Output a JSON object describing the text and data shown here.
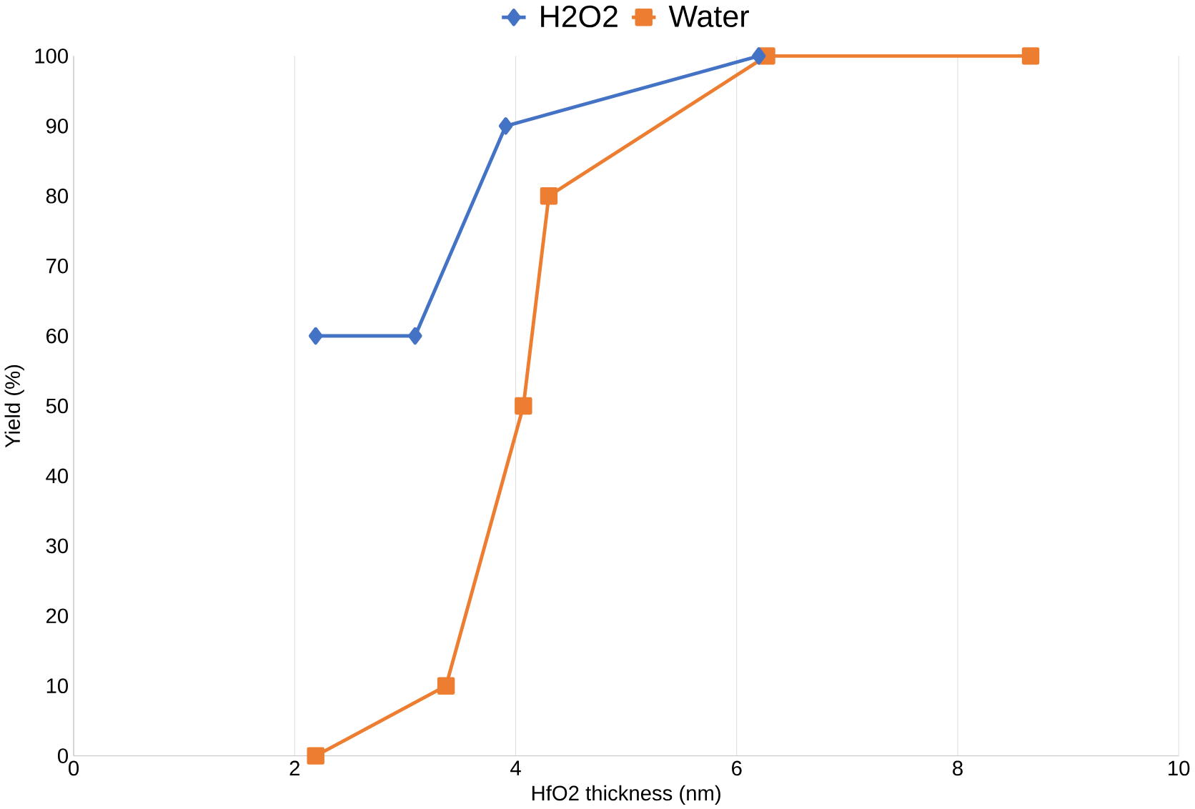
{
  "chart_data": {
    "type": "line",
    "xlabel": "HfO2 thickness (nm)",
    "ylabel": "Yield (%)",
    "xlim": [
      0,
      10
    ],
    "xticks": [
      0,
      2,
      4,
      6,
      8,
      10
    ],
    "ylim": [
      0,
      100
    ],
    "yticks": [
      0,
      10,
      20,
      30,
      40,
      50,
      60,
      70,
      80,
      90,
      100
    ],
    "grid": "x",
    "legend": "top",
    "series": [
      {
        "name": "H2O2",
        "color": "#4472c4",
        "marker": "diamond",
        "x": [
          2.19,
          3.09,
          3.91,
          6.2
        ],
        "values": [
          60,
          60,
          90,
          100
        ]
      },
      {
        "name": "Water",
        "color": "#ed7d31",
        "marker": "square",
        "x": [
          2.19,
          3.37,
          4.07,
          4.3,
          6.27,
          8.66
        ],
        "values": [
          0,
          10,
          50,
          80,
          100,
          100
        ]
      }
    ]
  }
}
